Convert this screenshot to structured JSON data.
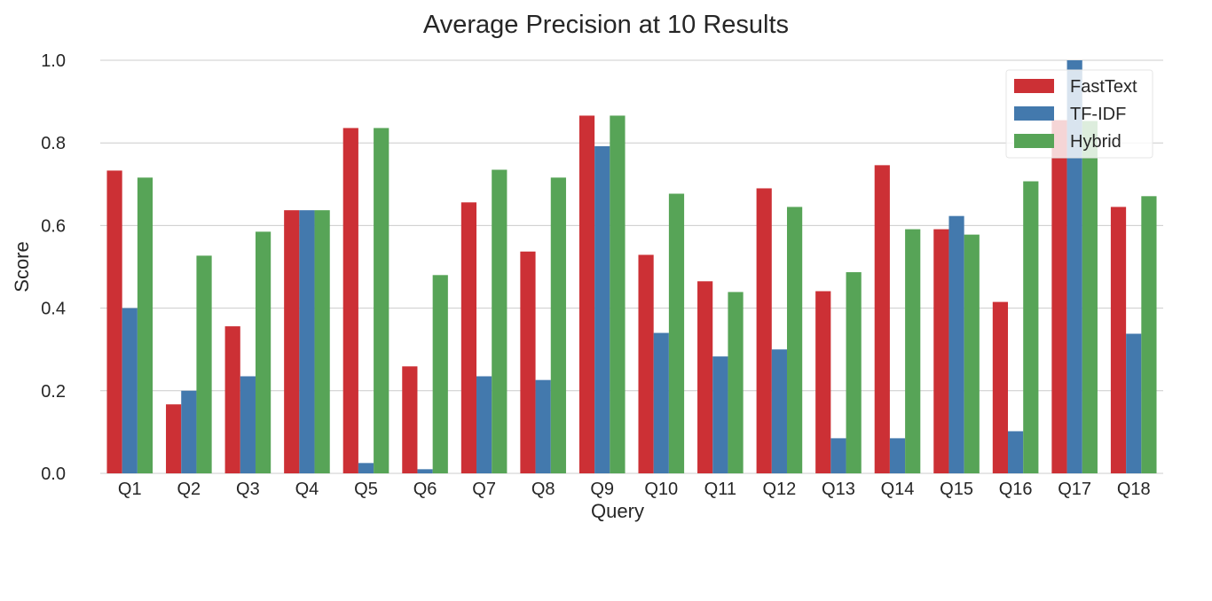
{
  "chart_data": {
    "type": "bar",
    "title": "Average Precision at 10 Results",
    "xlabel": "Query",
    "ylabel": "Score",
    "ylim": [
      0,
      1.0
    ],
    "yticks": [
      0.0,
      0.2,
      0.4,
      0.6,
      0.8,
      1.0
    ],
    "ytick_labels": [
      "0.0",
      "0.2",
      "0.4",
      "0.6",
      "0.8",
      "1.0"
    ],
    "grid": true,
    "legend_position": "top-right",
    "categories": [
      "Q1",
      "Q2",
      "Q3",
      "Q4",
      "Q5",
      "Q6",
      "Q7",
      "Q8",
      "Q9",
      "Q10",
      "Q11",
      "Q12",
      "Q13",
      "Q14",
      "Q15",
      "Q16",
      "Q17",
      "Q18"
    ],
    "series": [
      {
        "name": "FastText",
        "color": "#cc3035",
        "values": [
          0.733,
          0.167,
          0.356,
          0.637,
          0.836,
          0.259,
          0.656,
          0.537,
          0.866,
          0.529,
          0.465,
          0.69,
          0.441,
          0.746,
          0.591,
          0.415,
          0.855,
          0.645
        ]
      },
      {
        "name": "TF-IDF",
        "color": "#4379ad",
        "values": [
          0.4,
          0.2,
          0.235,
          0.637,
          0.025,
          0.01,
          0.235,
          0.226,
          0.792,
          0.34,
          0.283,
          0.3,
          0.085,
          0.085,
          0.623,
          0.102,
          1.0,
          0.338
        ]
      },
      {
        "name": "Hybrid",
        "color": "#57a457",
        "values": [
          0.716,
          0.527,
          0.585,
          0.637,
          0.836,
          0.48,
          0.735,
          0.716,
          0.866,
          0.677,
          0.439,
          0.645,
          0.487,
          0.591,
          0.578,
          0.707,
          0.853,
          0.671
        ]
      }
    ]
  }
}
